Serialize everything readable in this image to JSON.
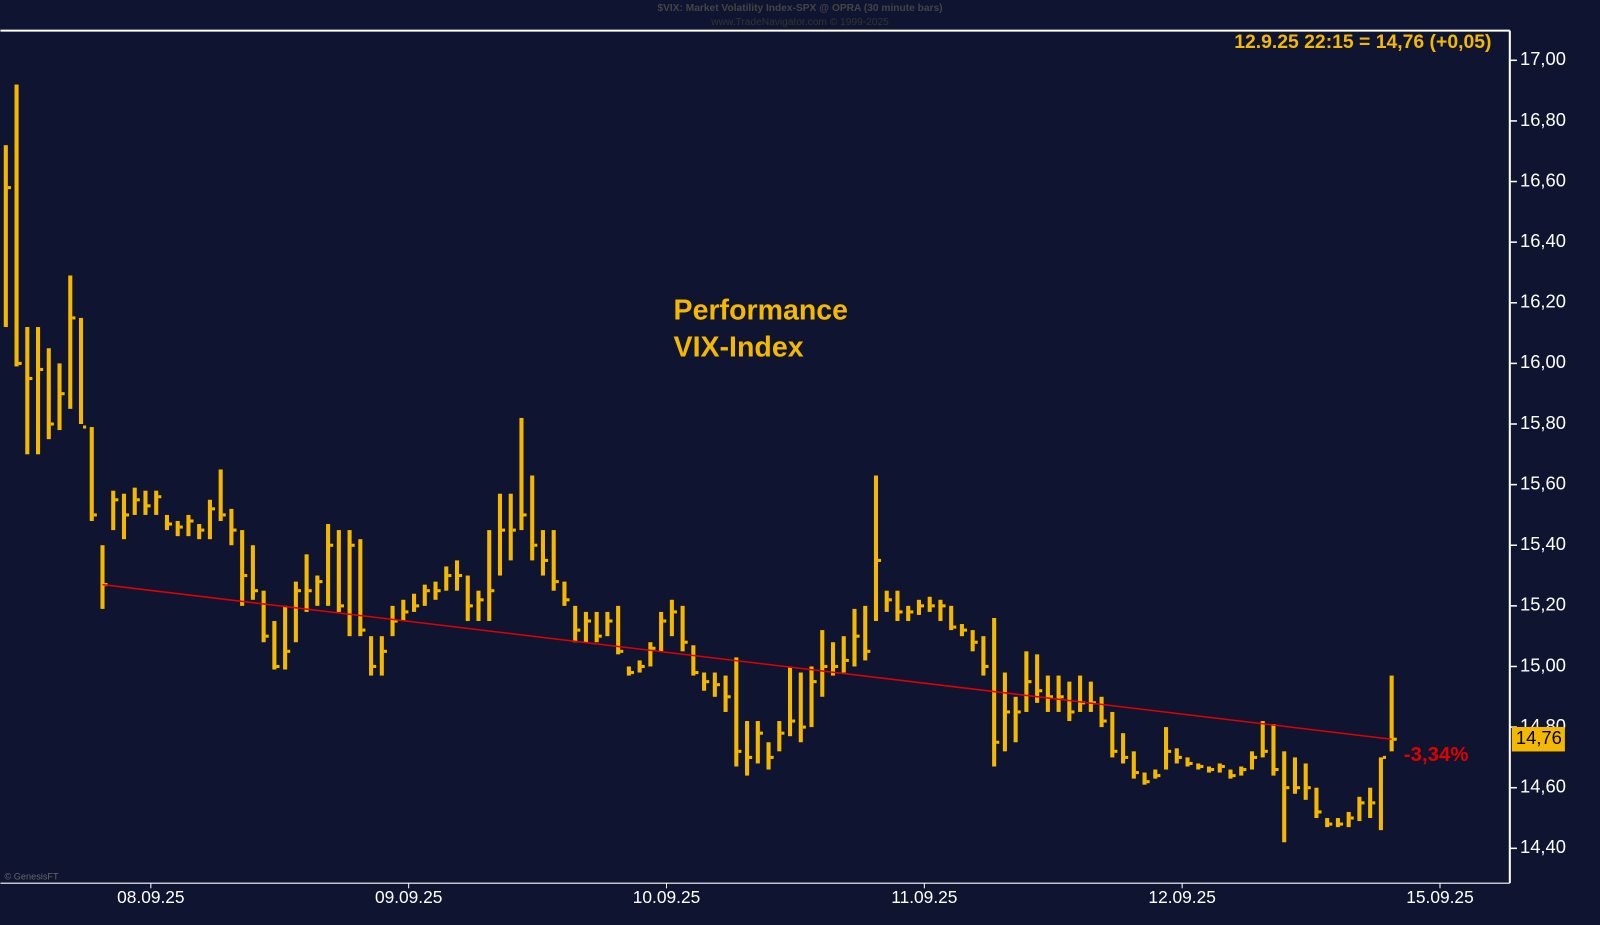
{
  "chart_data": {
    "type": "ohlc",
    "title": "$VIX:  Market Volatility Index-SPX @ OPRA  (30 minute bars)",
    "subtitle": "www.TradeNavigator.com © 1999-2025",
    "last_quote": "12.9.25 22:15 = 14,76 (+0,05)",
    "annotation": [
      "Performance",
      "VIX-Index"
    ],
    "credit": "© GenesisFT",
    "color": "#f5b800",
    "high": [
      16.72,
      16.92,
      16.12,
      16.12,
      16.05,
      16.0,
      16.29,
      16.15,
      15.79,
      15.4,
      15.58,
      15.57,
      15.59,
      15.58,
      15.58,
      15.5,
      15.48,
      15.5,
      15.47,
      15.55,
      15.65,
      15.52,
      15.45,
      15.4,
      15.25,
      15.15,
      15.2,
      15.28,
      15.37,
      15.3,
      15.47,
      15.45,
      15.45,
      15.42,
      15.1,
      15.1,
      15.2,
      15.22,
      15.24,
      15.27,
      15.28,
      15.33,
      15.35,
      15.3,
      15.25,
      15.45,
      15.57,
      15.57,
      15.82,
      15.63,
      15.45,
      15.45,
      15.28,
      15.2,
      15.18,
      15.18,
      15.18,
      15.2,
      15.0,
      15.02,
      15.08,
      15.18,
      15.22,
      15.2,
      15.07,
      14.98,
      14.98,
      14.97,
      15.03,
      14.82,
      14.82,
      14.75,
      14.82,
      15.0,
      14.98,
      15.0,
      15.12,
      15.08,
      15.1,
      15.19,
      15.2,
      15.63,
      15.25,
      15.25,
      15.2,
      15.22,
      15.23,
      15.22,
      15.2,
      15.14,
      15.12,
      15.1,
      15.16,
      14.98,
      14.9,
      15.05,
      15.04,
      14.97,
      14.97,
      14.95,
      14.97,
      14.95,
      14.9,
      14.85,
      14.78,
      14.72,
      14.65,
      14.66,
      14.8,
      14.73,
      14.7,
      14.68,
      14.67,
      14.68,
      14.66,
      14.67,
      14.72,
      14.82,
      14.81,
      14.72,
      14.7,
      14.68,
      14.6,
      14.5,
      14.5,
      14.52,
      14.57,
      14.6,
      14.7,
      14.97
    ],
    "low": [
      16.12,
      15.99,
      15.7,
      15.7,
      15.75,
      15.78,
      15.85,
      15.8,
      15.48,
      15.19,
      15.45,
      15.42,
      15.5,
      15.5,
      15.5,
      15.45,
      15.43,
      15.43,
      15.42,
      15.42,
      15.48,
      15.4,
      15.2,
      15.22,
      15.08,
      14.99,
      14.99,
      15.08,
      15.18,
      15.2,
      15.2,
      15.18,
      15.1,
      15.1,
      14.97,
      14.97,
      15.1,
      15.15,
      15.18,
      15.2,
      15.22,
      15.25,
      15.25,
      15.15,
      15.15,
      15.15,
      15.3,
      15.35,
      15.45,
      15.35,
      15.3,
      15.25,
      15.2,
      15.08,
      15.08,
      15.08,
      15.1,
      15.04,
      14.97,
      14.98,
      15.0,
      15.05,
      15.1,
      15.05,
      14.97,
      14.92,
      14.9,
      14.85,
      14.67,
      14.64,
      14.68,
      14.66,
      14.72,
      14.77,
      14.75,
      14.8,
      14.9,
      14.97,
      14.98,
      15.0,
      15.02,
      15.15,
      15.18,
      15.15,
      15.15,
      15.17,
      15.18,
      15.15,
      15.12,
      15.1,
      15.05,
      14.97,
      14.67,
      14.72,
      14.75,
      14.85,
      14.88,
      14.85,
      14.85,
      14.82,
      14.85,
      14.85,
      14.8,
      14.7,
      14.68,
      14.63,
      14.61,
      14.63,
      14.66,
      14.68,
      14.67,
      14.66,
      14.65,
      14.65,
      14.63,
      14.64,
      14.66,
      14.7,
      14.64,
      14.42,
      14.58,
      14.56,
      14.5,
      14.47,
      14.47,
      14.47,
      14.49,
      14.5,
      14.46,
      14.72
    ],
    "close": [
      16.58,
      16.0,
      15.95,
      15.98,
      15.8,
      15.9,
      16.15,
      15.79,
      15.5,
      15.27,
      15.55,
      15.5,
      15.55,
      15.53,
      15.56,
      15.47,
      15.46,
      15.48,
      15.45,
      15.52,
      15.5,
      15.45,
      15.3,
      15.25,
      15.1,
      15.0,
      15.05,
      15.25,
      15.25,
      15.28,
      15.4,
      15.2,
      15.4,
      15.12,
      15.0,
      15.05,
      15.15,
      15.18,
      15.2,
      15.25,
      15.25,
      15.3,
      15.3,
      15.2,
      15.22,
      15.25,
      15.45,
      15.45,
      15.5,
      15.4,
      15.35,
      15.28,
      15.22,
      15.12,
      15.15,
      15.1,
      15.15,
      15.05,
      14.98,
      15.0,
      15.06,
      15.15,
      15.18,
      15.08,
      14.98,
      14.95,
      14.94,
      14.9,
      14.72,
      14.7,
      14.78,
      14.7,
      14.78,
      14.82,
      14.8,
      14.95,
      15.0,
      15.0,
      15.02,
      15.1,
      15.05,
      15.35,
      15.22,
      15.18,
      15.18,
      15.2,
      15.2,
      15.2,
      15.13,
      15.12,
      15.08,
      15.0,
      14.75,
      14.85,
      14.85,
      14.95,
      14.92,
      14.9,
      14.9,
      14.85,
      14.88,
      14.88,
      14.82,
      14.72,
      14.7,
      14.65,
      14.62,
      14.64,
      14.72,
      14.7,
      14.68,
      14.67,
      14.66,
      14.67,
      14.64,
      14.66,
      14.7,
      14.72,
      14.66,
      14.6,
      14.6,
      14.6,
      14.52,
      14.48,
      14.48,
      14.5,
      14.55,
      14.55,
      14.7,
      14.76
    ],
    "trendline": {
      "x": [
        9,
        129
      ],
      "values": [
        15.27,
        14.76
      ],
      "color": "#e00000",
      "label": "-3,34%"
    },
    "last": {
      "value": 14.76,
      "label": "14,76"
    },
    "xlim": [
      -0.5,
      140
    ],
    "xticks": [
      {
        "value": 13.5,
        "label": "08.09.25"
      },
      {
        "value": 37.5,
        "label": "09.09.25"
      },
      {
        "value": 61.5,
        "label": "10.09.25"
      },
      {
        "value": 85.5,
        "label": "11.09.25"
      },
      {
        "value": 109.5,
        "label": "12.09.25"
      },
      {
        "value": 133.5,
        "label": "15.09.25"
      }
    ],
    "ylim": [
      14.285,
      17.098
    ],
    "yticks": [
      {
        "value": 14.4,
        "label": "14,40"
      },
      {
        "value": 14.6,
        "label": "14,60"
      },
      {
        "value": 14.8,
        "label": "14,80"
      },
      {
        "value": 15.0,
        "label": "15,00"
      },
      {
        "value": 15.2,
        "label": "15,20"
      },
      {
        "value": 15.4,
        "label": "15,40"
      },
      {
        "value": 15.6,
        "label": "15,60"
      },
      {
        "value": 15.8,
        "label": "15,80"
      },
      {
        "value": 16.0,
        "label": "16,00"
      },
      {
        "value": 16.2,
        "label": "16,20"
      },
      {
        "value": 16.4,
        "label": "16,40"
      },
      {
        "value": 16.6,
        "label": "16,60"
      },
      {
        "value": 16.8,
        "label": "16,80"
      },
      {
        "value": 17.0,
        "label": "17,00"
      }
    ]
  }
}
